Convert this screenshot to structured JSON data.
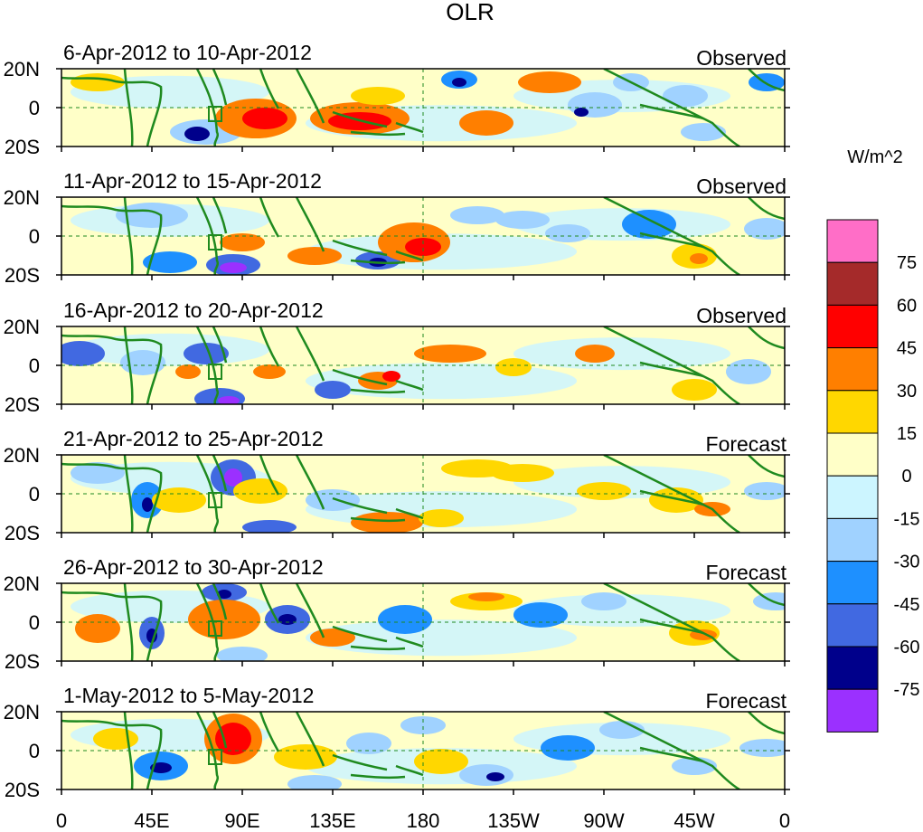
{
  "figure": {
    "title": "OLR",
    "units": "W/m^2",
    "x_ticks": [
      "0",
      "45E",
      "90E",
      "135E",
      "180",
      "135W",
      "90W",
      "45W",
      "0"
    ],
    "y_ticks": [
      "20N",
      "0",
      "20S"
    ]
  },
  "panels": [
    {
      "date_range": "6-Apr-2012 to 10-Apr-2012",
      "kind": "Observed"
    },
    {
      "date_range": "11-Apr-2012 to 15-Apr-2012",
      "kind": "Observed"
    },
    {
      "date_range": "16-Apr-2012 to 20-Apr-2012",
      "kind": "Observed"
    },
    {
      "date_range": "21-Apr-2012 to 25-Apr-2012",
      "kind": "Forecast"
    },
    {
      "date_range": "26-Apr-2012 to 30-Apr-2012",
      "kind": "Forecast"
    },
    {
      "date_range": "1-May-2012 to 5-May-2012",
      "kind": "Forecast"
    }
  ],
  "colorbar": {
    "labels": [
      "75",
      "60",
      "45",
      "30",
      "15",
      "0",
      "-15",
      "-30",
      "-45",
      "-60",
      "-75"
    ],
    "colors": [
      "#ff6ec7",
      "#a52a2a",
      "#ff0000",
      "#ff7f00",
      "#ffd700",
      "#ffffc8",
      "#ccf5ff",
      "#a0d2ff",
      "#1e90ff",
      "#4169e1",
      "#00008b",
      "#9b30ff"
    ]
  },
  "map_colors": {
    "coast": "#1f8a1f",
    "equator_line": "#1f8a1f"
  }
}
